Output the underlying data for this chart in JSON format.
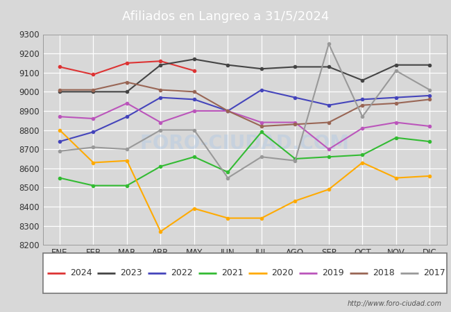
{
  "title": "Afiliados en Langreo a 31/5/2024",
  "title_bg_color": "#5599dd",
  "xlabel": "",
  "ylabel": "",
  "ylim": [
    8200,
    9300
  ],
  "yticks": [
    8200,
    8300,
    8400,
    8500,
    8600,
    8700,
    8800,
    8900,
    9000,
    9100,
    9200,
    9300
  ],
  "months": [
    "ENE",
    "FEB",
    "MAR",
    "ABR",
    "MAY",
    "JUN",
    "JUL",
    "AGO",
    "SEP",
    "OCT",
    "NOV",
    "DIC"
  ],
  "watermark": "FORO-CIUDAD.COM",
  "url": "http://www.foro-ciudad.com",
  "series": {
    "2024": {
      "color": "#dd3333",
      "data": [
        9130,
        9090,
        9150,
        9160,
        9110,
        null,
        null,
        null,
        null,
        null,
        null,
        null
      ]
    },
    "2023": {
      "color": "#444444",
      "data": [
        9000,
        9000,
        9000,
        9140,
        9170,
        9140,
        9120,
        9130,
        9130,
        9060,
        9140,
        9140
      ]
    },
    "2022": {
      "color": "#4444bb",
      "data": [
        8740,
        8790,
        8870,
        8970,
        8960,
        8900,
        9010,
        8970,
        8930,
        8960,
        8970,
        8980
      ]
    },
    "2021": {
      "color": "#33bb33",
      "data": [
        8550,
        8510,
        8510,
        8610,
        8660,
        8580,
        8790,
        8650,
        8660,
        8670,
        8760,
        8740
      ]
    },
    "2020": {
      "color": "#ffaa00",
      "data": [
        8800,
        8630,
        8640,
        8270,
        8390,
        8340,
        8340,
        8430,
        8490,
        8630,
        8550,
        8560
      ]
    },
    "2019": {
      "color": "#bb55bb",
      "data": [
        8870,
        8860,
        8940,
        8840,
        8900,
        8900,
        8840,
        8840,
        8700,
        8810,
        8840,
        8820
      ]
    },
    "2018": {
      "color": "#996655",
      "data": [
        9010,
        9010,
        9050,
        9010,
        9000,
        8900,
        8820,
        8830,
        8840,
        8930,
        8940,
        8960
      ]
    },
    "2017": {
      "color": "#999999",
      "data": [
        8690,
        8710,
        8700,
        8800,
        8800,
        8550,
        8660,
        8640,
        9250,
        8870,
        9110,
        9010
      ]
    }
  },
  "legend_order": [
    "2024",
    "2023",
    "2022",
    "2021",
    "2020",
    "2019",
    "2018",
    "2017"
  ],
  "outer_bg_color": "#d8d8d8",
  "plot_bg_color": "#d8d8d8",
  "grid_color": "#ffffff",
  "font_color": "#333333",
  "line_width": 1.5,
  "marker_size": 3
}
